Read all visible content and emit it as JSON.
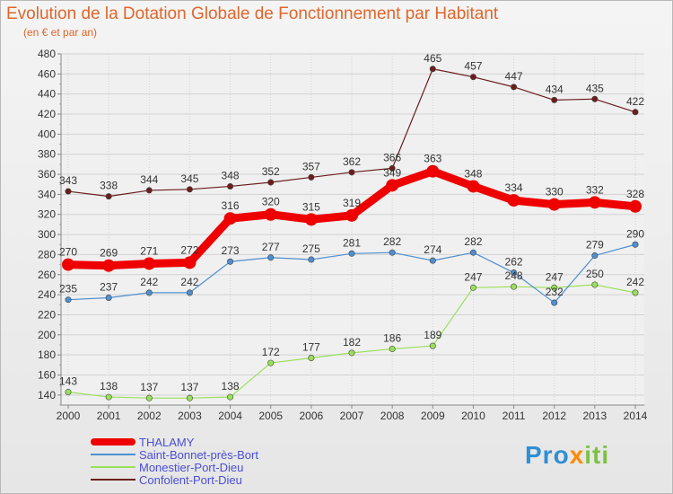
{
  "chart_data": {
    "type": "line",
    "title": "Evolution de la Dotation Globale de Fonctionnement par Habitant",
    "subtitle": "(en € et par an)",
    "xlabel": "",
    "ylabel": "",
    "ylim": [
      130,
      480
    ],
    "yticks": [
      140,
      160,
      180,
      200,
      220,
      240,
      260,
      280,
      300,
      320,
      340,
      360,
      380,
      400,
      420,
      440,
      460,
      480
    ],
    "categories": [
      "2000",
      "2001",
      "2002",
      "2003",
      "2004",
      "2005",
      "2006",
      "2007",
      "2008",
      "2009",
      "2010",
      "2011",
      "2012",
      "2013",
      "2014"
    ],
    "series": [
      {
        "name": "Confolent-Port-Dieu",
        "color": "#6b1d1d",
        "values": [
          343,
          338,
          344,
          345,
          348,
          352,
          357,
          362,
          366,
          465,
          457,
          447,
          434,
          435,
          422
        ]
      },
      {
        "name": "Monestier-Port-Dieu",
        "color": "#99e05a",
        "values": [
          143,
          138,
          137,
          137,
          138,
          172,
          177,
          182,
          186,
          189,
          247,
          248,
          247,
          250,
          242
        ]
      },
      {
        "name": "Saint-Bonnet-près-Bort",
        "color": "#4f8fcf",
        "values": [
          235,
          237,
          242,
          242,
          273,
          277,
          275,
          281,
          282,
          274,
          282,
          262,
          232,
          279,
          290
        ]
      },
      {
        "name": "THALAMY",
        "color": "#ee0000",
        "values": [
          270,
          269,
          271,
          272,
          316,
          320,
          315,
          319,
          349,
          363,
          348,
          334,
          330,
          332,
          328
        ]
      }
    ],
    "legend": [
      "THALAMY",
      "Saint-Bonnet-près-Bort",
      "Monestier-Port-Dieu",
      "Confolent-Port-Dieu"
    ],
    "legend_position": "bottom-left"
  },
  "logo": {
    "p1": "Pro",
    "x": "x",
    "p2": "iti"
  }
}
